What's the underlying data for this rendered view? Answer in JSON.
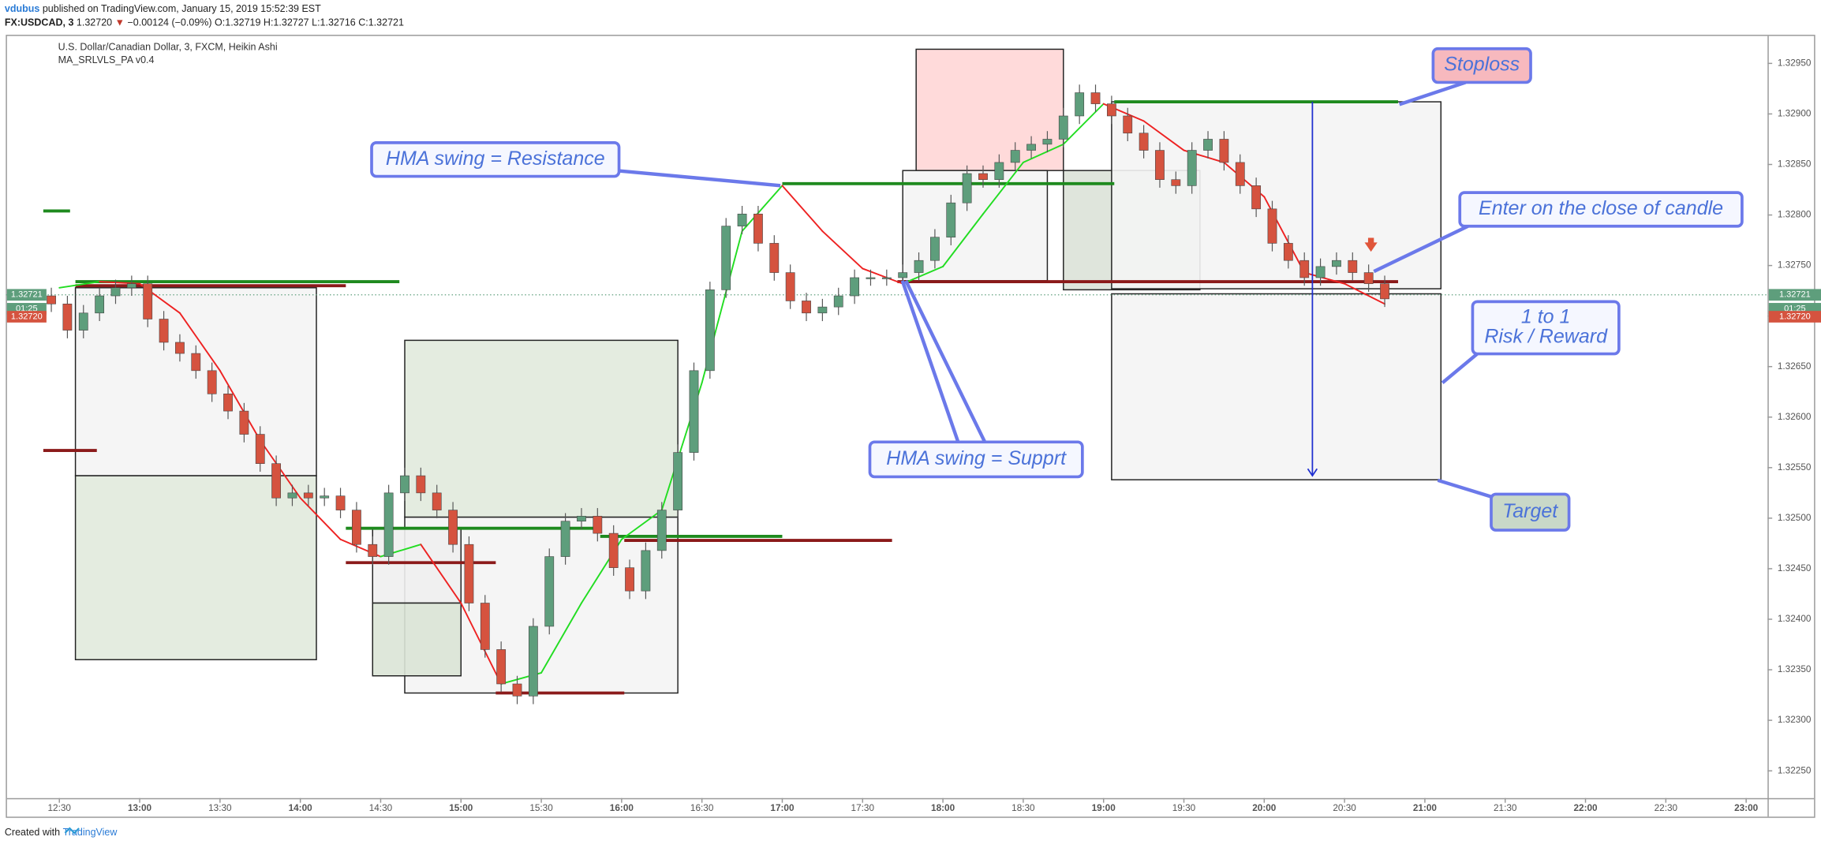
{
  "header": {
    "user": "vdubus",
    "published": "published on TradingView.com, January 15, 2019 15:52:39 EST",
    "symbol": "FX:USDCAD, 3",
    "last": "1.32720",
    "change": "−0.00124 (−0.09%)",
    "ohlc": "O:1.32719 H:1.32727 L:1.32716 C:1.32721"
  },
  "chart_data": {
    "type": "candlestick",
    "title": "U.S. Dollar/Canadian Dollar, 3, FXCM, Heikin Ashi",
    "subtitle": "MA_SRLVLS_PA v0.4",
    "up_color": "#5e9e7c",
    "down_color": "#d5533f",
    "x": [
      "12:27",
      "12:33",
      "12:39",
      "12:45",
      "12:51",
      "12:57",
      "13:03",
      "13:09",
      "13:15",
      "13:21",
      "13:27",
      "13:33",
      "13:39",
      "13:45",
      "13:51",
      "13:57",
      "14:03",
      "14:09",
      "14:15",
      "14:21",
      "14:27",
      "14:33",
      "14:39",
      "14:45",
      "14:51",
      "14:57",
      "15:03",
      "15:09",
      "15:15",
      "15:21",
      "15:27",
      "15:33",
      "15:39",
      "15:45",
      "15:51",
      "15:57",
      "16:03",
      "16:09",
      "16:15",
      "16:21",
      "16:27",
      "16:33",
      "16:39",
      "16:45",
      "16:51",
      "16:57",
      "17:03",
      "17:09",
      "17:15",
      "17:21",
      "17:27",
      "17:33",
      "17:39",
      "17:45",
      "17:51",
      "17:57",
      "18:03",
      "18:09",
      "18:15",
      "18:21",
      "18:27",
      "18:33",
      "18:39",
      "18:45",
      "18:51",
      "18:57",
      "19:03",
      "19:09",
      "19:15",
      "19:21",
      "19:27",
      "19:33",
      "19:39",
      "19:45",
      "19:51",
      "19:57",
      "20:03",
      "20:09",
      "20:15",
      "20:21",
      "20:27",
      "20:33",
      "20:39",
      "20:45"
    ],
    "open": [
      1.3272,
      1.32712,
      1.32686,
      1.32703,
      1.3272,
      1.32728,
      1.32732,
      1.32697,
      1.32674,
      1.32663,
      1.32646,
      1.32623,
      1.32606,
      1.32583,
      1.32554,
      1.3252,
      1.32525,
      1.3252,
      1.32522,
      1.32508,
      1.32474,
      1.32462,
      1.32525,
      1.32542,
      1.32525,
      1.32508,
      1.32474,
      1.32416,
      1.3237,
      1.32336,
      1.32324,
      1.32393,
      1.32462,
      1.32497,
      1.32502,
      1.32485,
      1.32451,
      1.32428,
      1.32468,
      1.32508,
      1.32565,
      1.32646,
      1.32726,
      1.32789,
      1.32801,
      1.32772,
      1.32743,
      1.32715,
      1.32703,
      1.32709,
      1.3272,
      1.32738,
      1.32738,
      1.32738,
      1.32743,
      1.32755,
      1.32778,
      1.32812,
      1.32841,
      1.32835,
      1.32852,
      1.32864,
      1.3287,
      1.32875,
      1.32898,
      1.32921,
      1.3291,
      1.32898,
      1.32881,
      1.32864,
      1.32835,
      1.32829,
      1.32864,
      1.32875,
      1.32852,
      1.32829,
      1.32806,
      1.32772,
      1.32755,
      1.32738,
      1.32749,
      1.32755,
      1.32743,
      1.32732
    ],
    "high": [
      1.32728,
      1.3272,
      1.32711,
      1.32728,
      1.32736,
      1.3274,
      1.3274,
      1.32705,
      1.32682,
      1.32671,
      1.32654,
      1.32631,
      1.32614,
      1.32591,
      1.32562,
      1.32533,
      1.32533,
      1.3253,
      1.3253,
      1.32516,
      1.32482,
      1.32533,
      1.3255,
      1.3255,
      1.32533,
      1.32516,
      1.32482,
      1.32424,
      1.32378,
      1.32344,
      1.32401,
      1.3247,
      1.32505,
      1.3251,
      1.3251,
      1.32493,
      1.32459,
      1.32476,
      1.32516,
      1.32573,
      1.32654,
      1.32734,
      1.32797,
      1.32809,
      1.32809,
      1.3278,
      1.32751,
      1.32723,
      1.32717,
      1.32728,
      1.32746,
      1.32746,
      1.32746,
      1.32751,
      1.32763,
      1.32786,
      1.3282,
      1.32849,
      1.32849,
      1.3286,
      1.32872,
      1.32878,
      1.32883,
      1.32906,
      1.32929,
      1.32929,
      1.32918,
      1.32906,
      1.32889,
      1.32872,
      1.32843,
      1.32872,
      1.32883,
      1.32883,
      1.3286,
      1.32837,
      1.32814,
      1.3278,
      1.32763,
      1.32757,
      1.32763,
      1.32763,
      1.32751,
      1.3274
    ],
    "low": [
      1.32704,
      1.32678,
      1.32678,
      1.32695,
      1.32712,
      1.3272,
      1.32689,
      1.32666,
      1.32655,
      1.32638,
      1.32615,
      1.32598,
      1.32575,
      1.32546,
      1.32512,
      1.32512,
      1.32512,
      1.32512,
      1.325,
      1.32466,
      1.32454,
      1.32454,
      1.32517,
      1.32517,
      1.325,
      1.32466,
      1.32408,
      1.32362,
      1.32328,
      1.32316,
      1.32316,
      1.32385,
      1.32454,
      1.32489,
      1.32477,
      1.32443,
      1.3242,
      1.3242,
      1.3246,
      1.325,
      1.32557,
      1.32638,
      1.32718,
      1.32781,
      1.32764,
      1.32735,
      1.32707,
      1.32695,
      1.32695,
      1.32701,
      1.32712,
      1.3273,
      1.3273,
      1.3273,
      1.32735,
      1.32747,
      1.3277,
      1.32804,
      1.32827,
      1.32827,
      1.32844,
      1.32856,
      1.32862,
      1.32867,
      1.3289,
      1.32902,
      1.3289,
      1.32873,
      1.32856,
      1.32827,
      1.32821,
      1.32821,
      1.32856,
      1.32844,
      1.32821,
      1.32798,
      1.32764,
      1.32747,
      1.3273,
      1.3273,
      1.32741,
      1.32735,
      1.32724,
      1.32709
    ],
    "close": [
      1.32712,
      1.32686,
      1.32703,
      1.3272,
      1.32728,
      1.32732,
      1.32697,
      1.32674,
      1.32663,
      1.32646,
      1.32623,
      1.32606,
      1.32583,
      1.32554,
      1.3252,
      1.32525,
      1.3252,
      1.32522,
      1.32508,
      1.32474,
      1.32462,
      1.32525,
      1.32542,
      1.32525,
      1.32508,
      1.32474,
      1.32416,
      1.3237,
      1.32336,
      1.32324,
      1.32393,
      1.32462,
      1.32497,
      1.32502,
      1.32485,
      1.32451,
      1.32428,
      1.32468,
      1.32508,
      1.32565,
      1.32646,
      1.32726,
      1.32789,
      1.32801,
      1.32772,
      1.32743,
      1.32715,
      1.32703,
      1.32709,
      1.3272,
      1.32738,
      1.32738,
      1.32738,
      1.32743,
      1.32755,
      1.32778,
      1.32812,
      1.32841,
      1.32835,
      1.32852,
      1.32864,
      1.3287,
      1.32875,
      1.32898,
      1.32921,
      1.3291,
      1.32898,
      1.32881,
      1.32864,
      1.32835,
      1.32829,
      1.32864,
      1.32875,
      1.32852,
      1.32829,
      1.32806,
      1.32772,
      1.32755,
      1.32738,
      1.32749,
      1.32755,
      1.32743,
      1.32732,
      1.32717
    ],
    "xlim": [
      "12:10",
      "23:08"
    ],
    "xticks": [
      "12:30",
      "13:00",
      "13:30",
      "14:00",
      "14:30",
      "15:00",
      "15:30",
      "16:00",
      "16:30",
      "17:00",
      "17:30",
      "18:00",
      "18:30",
      "19:00",
      "19:30",
      "20:00",
      "20:30",
      "21:00",
      "21:30",
      "22:00",
      "22:30",
      "23:00"
    ],
    "ylim": [
      1.32223,
      1.32976
    ],
    "yticks": [
      {
        "value": 1.3225,
        "label": "1.32250"
      },
      {
        "value": 1.323,
        "label": "1.32300"
      },
      {
        "value": 1.3235,
        "label": "1.32350"
      },
      {
        "value": 1.324,
        "label": "1.32400"
      },
      {
        "value": 1.3245,
        "label": "1.32450"
      },
      {
        "value": 1.325,
        "label": "1.32500"
      },
      {
        "value": 1.3255,
        "label": "1.32550"
      },
      {
        "value": 1.326,
        "label": "1.32600"
      },
      {
        "value": 1.3265,
        "label": "1.32650"
      },
      {
        "value": 1.327,
        "label": "1.32700"
      },
      {
        "value": 1.3275,
        "label": "1.32750"
      },
      {
        "value": 1.328,
        "label": "1.32800"
      },
      {
        "value": 1.3285,
        "label": "1.32850"
      },
      {
        "value": 1.329,
        "label": "1.32900"
      },
      {
        "value": 1.3295,
        "label": "1.32950"
      }
    ],
    "hma": {
      "up_color": "#22dd22",
      "down_color": "#ee2222",
      "x": [
        "12:30",
        "12:45",
        "13:00",
        "13:15",
        "13:30",
        "13:45",
        "14:00",
        "14:15",
        "14:30",
        "14:45",
        "15:00",
        "15:15",
        "15:30",
        "15:45",
        "16:00",
        "16:15",
        "16:30",
        "16:45",
        "17:00",
        "17:15",
        "17:30",
        "17:45",
        "18:00",
        "18:15",
        "18:30",
        "18:45",
        "19:00",
        "19:15",
        "19:30",
        "19:45",
        "20:00",
        "20:15",
        "20:30",
        "20:45"
      ],
      "values": [
        1.32728,
        1.32734,
        1.32732,
        1.32703,
        1.32646,
        1.32577,
        1.3252,
        1.32479,
        1.32462,
        1.32474,
        1.32416,
        1.32336,
        1.32347,
        1.32416,
        1.32479,
        1.32508,
        1.32634,
        1.32784,
        1.32829,
        1.32784,
        1.32747,
        1.32732,
        1.32749,
        1.32801,
        1.32852,
        1.3287,
        1.3291,
        1.32893,
        1.32864,
        1.32852,
        1.32818,
        1.32743,
        1.32732,
        1.32712
      ]
    },
    "zones": [
      {
        "x": [
          "12:36",
          "14:06"
        ],
        "y": [
          1.32728,
          1.32542
        ],
        "color": "#f4f4f4"
      },
      {
        "x": [
          "12:36",
          "14:06"
        ],
        "y": [
          1.32542,
          1.3236
        ],
        "color": "#e1eadd"
      },
      {
        "x": [
          "14:39",
          "16:21"
        ],
        "y": [
          1.32676,
          1.32501
        ],
        "color": "#e1eadd"
      },
      {
        "x": [
          "14:39",
          "16:21"
        ],
        "y": [
          1.32501,
          1.32327
        ],
        "color": "#f4f4f4"
      },
      {
        "x": [
          "14:27",
          "15:00"
        ],
        "y": [
          1.3249,
          1.32416
        ],
        "color": "#efefef"
      },
      {
        "x": [
          "14:27",
          "15:00"
        ],
        "y": [
          1.32416,
          1.32344
        ],
        "color": "#dae4d6"
      },
      {
        "x": [
          "17:50",
          "18:45"
        ],
        "y": [
          1.32964,
          1.32844
        ],
        "color": "#ffd6d6"
      },
      {
        "x": [
          "17:45",
          "18:39"
        ],
        "y": [
          1.32844,
          1.32735
        ],
        "color": "#f4f4f4"
      },
      {
        "x": [
          "18:45",
          "19:36"
        ],
        "y": [
          1.32844,
          1.32726
        ],
        "color": "#dbe2d8"
      },
      {
        "x": [
          "19:03",
          "21:06"
        ],
        "y": [
          1.32912,
          1.32727
        ],
        "color": "#f4f4f4"
      },
      {
        "x": [
          "19:03",
          "21:06"
        ],
        "y": [
          1.32722,
          1.32538
        ],
        "color": "#f4f4f4"
      }
    ],
    "levels": [
      {
        "x": [
          "12:36",
          "14:37"
        ],
        "value": 1.32734,
        "color": "#1e8a1e"
      },
      {
        "x": [
          "12:36",
          "14:17"
        ],
        "value": 1.3273,
        "color": "#8b1a1a"
      },
      {
        "x": [
          "12:24",
          "12:34"
        ],
        "value": 1.32804,
        "color": "#1e8a1e"
      },
      {
        "x": [
          "12:24",
          "12:44"
        ],
        "value": 1.32567,
        "color": "#8b1a1a"
      },
      {
        "x": [
          "14:17",
          "15:52"
        ],
        "value": 1.3249,
        "color": "#1e8a1e"
      },
      {
        "x": [
          "14:17",
          "15:13"
        ],
        "value": 1.32456,
        "color": "#8b1a1a"
      },
      {
        "x": [
          "15:13",
          "16:01"
        ],
        "value": 1.32327,
        "color": "#8b1a1a"
      },
      {
        "x": [
          "15:52",
          "17:00"
        ],
        "value": 1.32482,
        "color": "#1e8a1e"
      },
      {
        "x": [
          "16:01",
          "17:41"
        ],
        "value": 1.32478,
        "color": "#8b1a1a"
      },
      {
        "x": [
          "17:00",
          "19:04"
        ],
        "value": 1.32831,
        "color": "#1e8a1e"
      },
      {
        "x": [
          "17:43",
          "20:50"
        ],
        "value": 1.32734,
        "color": "#8b1a1a"
      },
      {
        "x": [
          "19:04",
          "20:50"
        ],
        "value": 1.32912,
        "color": "#1e8a1e"
      }
    ],
    "arrow": {
      "x": "20:18",
      "y": [
        1.32912,
        1.32542
      ],
      "color": "#1f2fd0"
    },
    "last_price": {
      "value": 1.32721,
      "label": "1.32721"
    },
    "countdown": "01:25",
    "bid_price": {
      "value": 1.3272,
      "label": "1.32720"
    },
    "annotations": [
      {
        "lines": [
          "Stoploss"
        ],
        "fill": "#f7b9be"
      },
      {
        "lines": [
          "Enter on the close of candle"
        ],
        "fill": "#f5f7ff"
      },
      {
        "lines": [
          "1 to 1",
          "Risk / Reward"
        ],
        "fill": "#f5f7ff"
      },
      {
        "lines": [
          "Target"
        ],
        "fill": "#c9d8c8"
      },
      {
        "lines": [
          "HMA swing = Resistance"
        ],
        "fill": "#f5f7ff"
      },
      {
        "lines": [
          "HMA swing = Supprt"
        ],
        "fill": "#f5f7ff"
      }
    ]
  },
  "footer": {
    "created": "Created with",
    "brand": "TradingView"
  }
}
